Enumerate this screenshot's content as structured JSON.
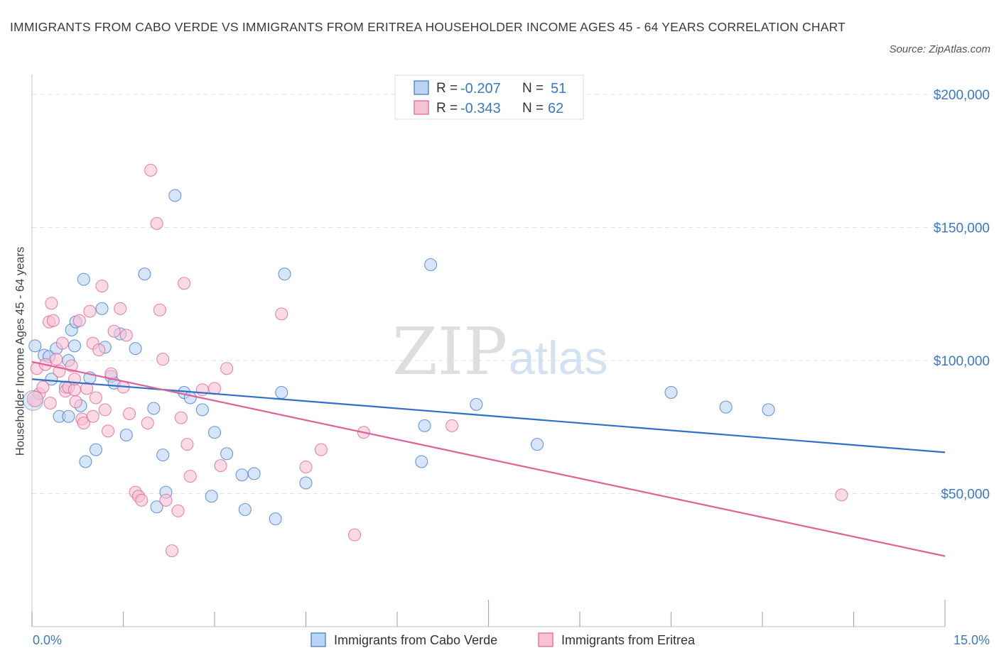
{
  "title": "IMMIGRANTS FROM CABO VERDE VS IMMIGRANTS FROM ERITREA HOUSEHOLDER INCOME AGES 45 - 64 YEARS CORRELATION CHART",
  "source": "Source: ZipAtlas.com",
  "watermark": {
    "zip": "ZIP",
    "atlas": "atlas"
  },
  "colors": {
    "blue": "#3a78c9",
    "blue_fill": "#bcd4f3",
    "blue_line": "#2f6fc8",
    "pink": "#e0608f",
    "pink_fill": "#f7c2d3",
    "pink_line": "#e0609a",
    "grid": "#e3e3e3"
  },
  "stats": [
    {
      "r_label": "R =",
      "r": "-0.207",
      "n_label": "N =",
      "n": "51",
      "color": "blue"
    },
    {
      "r_label": "R =",
      "r": "-0.343",
      "n_label": "N =",
      "n": "62",
      "color": "pink"
    }
  ],
  "chart_data": {
    "type": "scatter",
    "ylabel": "Householder Income Ages 45 - 64 years",
    "xlim": [
      0,
      15
    ],
    "ylim": [
      0,
      200000
    ],
    "x_tick_labels": [
      "0.0%",
      "15.0%"
    ],
    "y_ticks": [
      {
        "value": 50000,
        "label": "$50,000"
      },
      {
        "value": 100000,
        "label": "$100,000"
      },
      {
        "value": 150000,
        "label": "$150,000"
      },
      {
        "value": 200000,
        "label": "$200,000"
      }
    ],
    "grid": true,
    "legend_position": "bottom",
    "series": [
      {
        "name": "Immigrants from Cabo Verde",
        "color": "blue",
        "trend": [
          [
            0,
            93000
          ],
          [
            15,
            65500
          ]
        ],
        "points": [
          [
            0.05,
            105500
          ],
          [
            0.2,
            102000
          ],
          [
            0.28,
            101500
          ],
          [
            0.32,
            93000
          ],
          [
            0.4,
            104500
          ],
          [
            0.45,
            79000
          ],
          [
            0.55,
            90000
          ],
          [
            0.6,
            100000
          ],
          [
            0.65,
            111500
          ],
          [
            0.7,
            105500
          ],
          [
            0.72,
            114500
          ],
          [
            0.8,
            83000
          ],
          [
            0.85,
            130500
          ],
          [
            0.88,
            62000
          ],
          [
            0.95,
            93500
          ],
          [
            1.05,
            66500
          ],
          [
            1.15,
            119500
          ],
          [
            1.2,
            105000
          ],
          [
            1.3,
            94000
          ],
          [
            1.35,
            91500
          ],
          [
            1.45,
            110000
          ],
          [
            1.55,
            72000
          ],
          [
            1.7,
            104500
          ],
          [
            1.85,
            132500
          ],
          [
            2.05,
            45000
          ],
          [
            2.0,
            82000
          ],
          [
            2.15,
            64500
          ],
          [
            2.2,
            50500
          ],
          [
            2.35,
            162000
          ],
          [
            2.5,
            88000
          ],
          [
            2.6,
            86000
          ],
          [
            2.8,
            81500
          ],
          [
            2.95,
            49000
          ],
          [
            3.0,
            73000
          ],
          [
            3.2,
            65000
          ],
          [
            3.45,
            57000
          ],
          [
            3.5,
            44000
          ],
          [
            3.65,
            57500
          ],
          [
            4.0,
            40500
          ],
          [
            4.1,
            88000
          ],
          [
            4.15,
            132500
          ],
          [
            4.5,
            54000
          ],
          [
            6.4,
            62000
          ],
          [
            6.45,
            75500
          ],
          [
            6.55,
            136000
          ],
          [
            7.3,
            83500
          ],
          [
            8.3,
            68500
          ],
          [
            10.5,
            88000
          ],
          [
            11.4,
            82500
          ],
          [
            12.1,
            81500
          ],
          [
            0.6,
            79000
          ]
        ]
      },
      {
        "name": "Immigrants from Eritrea",
        "color": "pink",
        "trend": [
          [
            0,
            99500
          ],
          [
            15,
            26500
          ]
        ],
        "points": [
          [
            0.05,
            85000
          ],
          [
            0.08,
            97000
          ],
          [
            0.12,
            87500
          ],
          [
            0.18,
            90000
          ],
          [
            0.22,
            98500
          ],
          [
            0.28,
            114500
          ],
          [
            0.32,
            121500
          ],
          [
            0.35,
            115000
          ],
          [
            0.4,
            100500
          ],
          [
            0.45,
            96000
          ],
          [
            0.5,
            106500
          ],
          [
            0.55,
            88500
          ],
          [
            0.6,
            90000
          ],
          [
            0.65,
            98000
          ],
          [
            0.7,
            89000
          ],
          [
            0.72,
            84500
          ],
          [
            0.78,
            115000
          ],
          [
            0.82,
            78000
          ],
          [
            0.85,
            76500
          ],
          [
            0.9,
            89500
          ],
          [
            0.95,
            118500
          ],
          [
            1.0,
            106500
          ],
          [
            1.05,
            86000
          ],
          [
            1.1,
            104000
          ],
          [
            1.15,
            128000
          ],
          [
            1.2,
            81500
          ],
          [
            1.25,
            73500
          ],
          [
            1.3,
            95000
          ],
          [
            1.35,
            111000
          ],
          [
            1.45,
            119500
          ],
          [
            1.5,
            90000
          ],
          [
            1.55,
            109500
          ],
          [
            1.6,
            80000
          ],
          [
            1.7,
            50500
          ],
          [
            1.75,
            49000
          ],
          [
            1.8,
            47500
          ],
          [
            1.9,
            76500
          ],
          [
            1.95,
            171500
          ],
          [
            2.05,
            151500
          ],
          [
            2.1,
            119000
          ],
          [
            2.15,
            100500
          ],
          [
            2.2,
            47500
          ],
          [
            2.3,
            28500
          ],
          [
            2.4,
            43500
          ],
          [
            2.45,
            78500
          ],
          [
            2.5,
            129000
          ],
          [
            2.55,
            68500
          ],
          [
            2.6,
            56500
          ],
          [
            2.8,
            89000
          ],
          [
            3.0,
            89500
          ],
          [
            3.1,
            60500
          ],
          [
            3.2,
            97000
          ],
          [
            4.1,
            117500
          ],
          [
            4.5,
            60000
          ],
          [
            4.75,
            66500
          ],
          [
            5.3,
            34500
          ],
          [
            5.45,
            73000
          ],
          [
            6.9,
            75500
          ],
          [
            13.3,
            49500
          ],
          [
            0.7,
            93000
          ],
          [
            1.0,
            79000
          ],
          [
            0.3,
            84000
          ]
        ]
      }
    ]
  }
}
